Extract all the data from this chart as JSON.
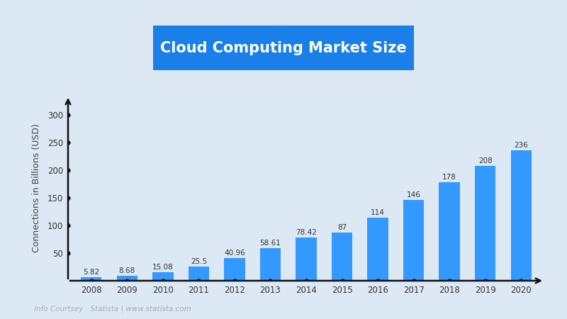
{
  "title": "Cloud Computing Market Size",
  "ylabel": "Connections in Billions (USD)",
  "background_color": "#dce9f5",
  "bar_color": "#3399ff",
  "years": [
    2008,
    2009,
    2010,
    2011,
    2012,
    2013,
    2014,
    2015,
    2016,
    2017,
    2018,
    2019,
    2020
  ],
  "values": [
    5.82,
    8.68,
    15.08,
    25.5,
    40.96,
    58.61,
    78.42,
    87,
    114,
    146,
    178,
    208,
    236
  ],
  "ylim": [
    0,
    335
  ],
  "yticks": [
    50,
    100,
    150,
    200,
    250,
    300
  ],
  "title_box_color": "#1a7fe8",
  "title_text_color": "#ffffff",
  "axis_color": "#111111",
  "tick_color": "#333333",
  "label_color": "#444444",
  "value_label_color": "#333333",
  "footnote": "Info Courtsey : Statista | www.statista.com",
  "footnote_color": "#aaaaaa"
}
